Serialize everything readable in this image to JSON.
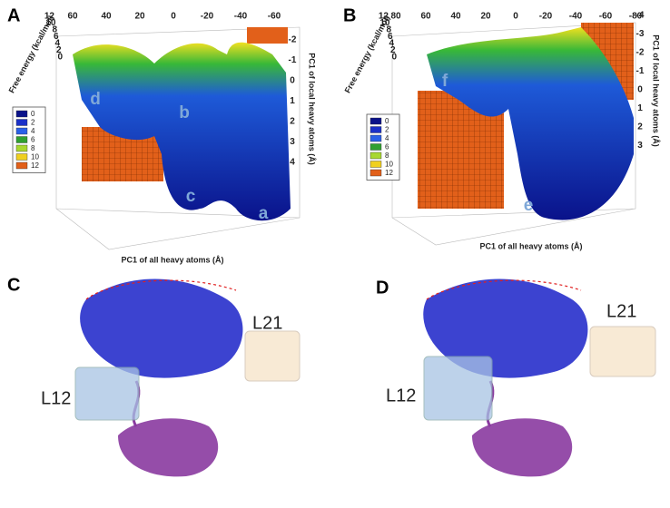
{
  "panels": [
    {
      "label": "A",
      "z_axis_label": "Free energy (kcal/mol)",
      "z_ticks": [
        "12",
        "10",
        "8",
        "6",
        "4",
        "2",
        "0"
      ],
      "x_ticks": [
        "60",
        "40",
        "20",
        "0",
        "-20",
        "-40",
        "-60"
      ],
      "y_axis_label": "PC1 of local heavy atoms (Å)",
      "y_ticks": [
        "-2",
        "-1",
        "0",
        "1",
        "2",
        "3",
        "4"
      ],
      "x_axis_label": "PC1 of all heavy atoms (Å)",
      "legend": [
        "0",
        "2",
        "4",
        "6",
        "8",
        "10",
        "12"
      ],
      "basins": [
        "d",
        "b",
        "c",
        "a"
      ]
    },
    {
      "label": "B",
      "z_axis_label": "Free energy (kcal/mol)",
      "z_ticks": [
        "12",
        "10",
        "8",
        "6",
        "4",
        "2",
        "0"
      ],
      "x_ticks": [
        "80",
        "60",
        "40",
        "20",
        "0",
        "-20",
        "-40",
        "-60",
        "-80"
      ],
      "y_axis_label": "PC1 of local heavy atoms (Å)",
      "y_ticks": [
        "-4",
        "-3",
        "-2",
        "-1",
        "0",
        "1",
        "2",
        "3"
      ],
      "x_axis_label": "PC1 of all heavy atoms (Å)",
      "legend": [
        "0",
        "2",
        "4",
        "6",
        "8",
        "10",
        "12"
      ],
      "basins": [
        "f",
        "e"
      ]
    },
    {
      "label": "C",
      "loops": [
        "L12",
        "L21"
      ]
    },
    {
      "label": "D",
      "loops": [
        "L12",
        "L21"
      ]
    }
  ]
}
